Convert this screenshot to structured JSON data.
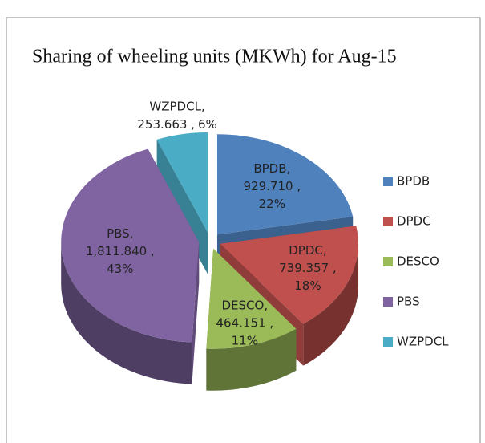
{
  "chart_data": {
    "type": "pie",
    "title": "Sharing of wheeling units (MKWh) for Aug-15",
    "categories": [
      "BPDB",
      "DPDC",
      "DESCO",
      "PBS",
      "WZPDCL"
    ],
    "values": [
      929.71,
      739.357,
      464.151,
      1811.84,
      253.663
    ],
    "value_labels": [
      "929.710 ,",
      "739.357 ,",
      "464.151 ,",
      "1,811.840 ,",
      "253.663 ,"
    ],
    "label_names": [
      "BPDB,",
      "DPDC,",
      "DESCO,",
      "PBS,",
      "WZPDCL,"
    ],
    "percentages": [
      22,
      18,
      11,
      43,
      6
    ],
    "percent_labels": [
      "22%",
      "18%",
      "11%",
      "43%",
      "6%"
    ],
    "colors": [
      "#4f81bd",
      "#c0504d",
      "#9bbb59",
      "#8064a2",
      "#4bacc6"
    ],
    "legend": "right",
    "exploded": true
  }
}
